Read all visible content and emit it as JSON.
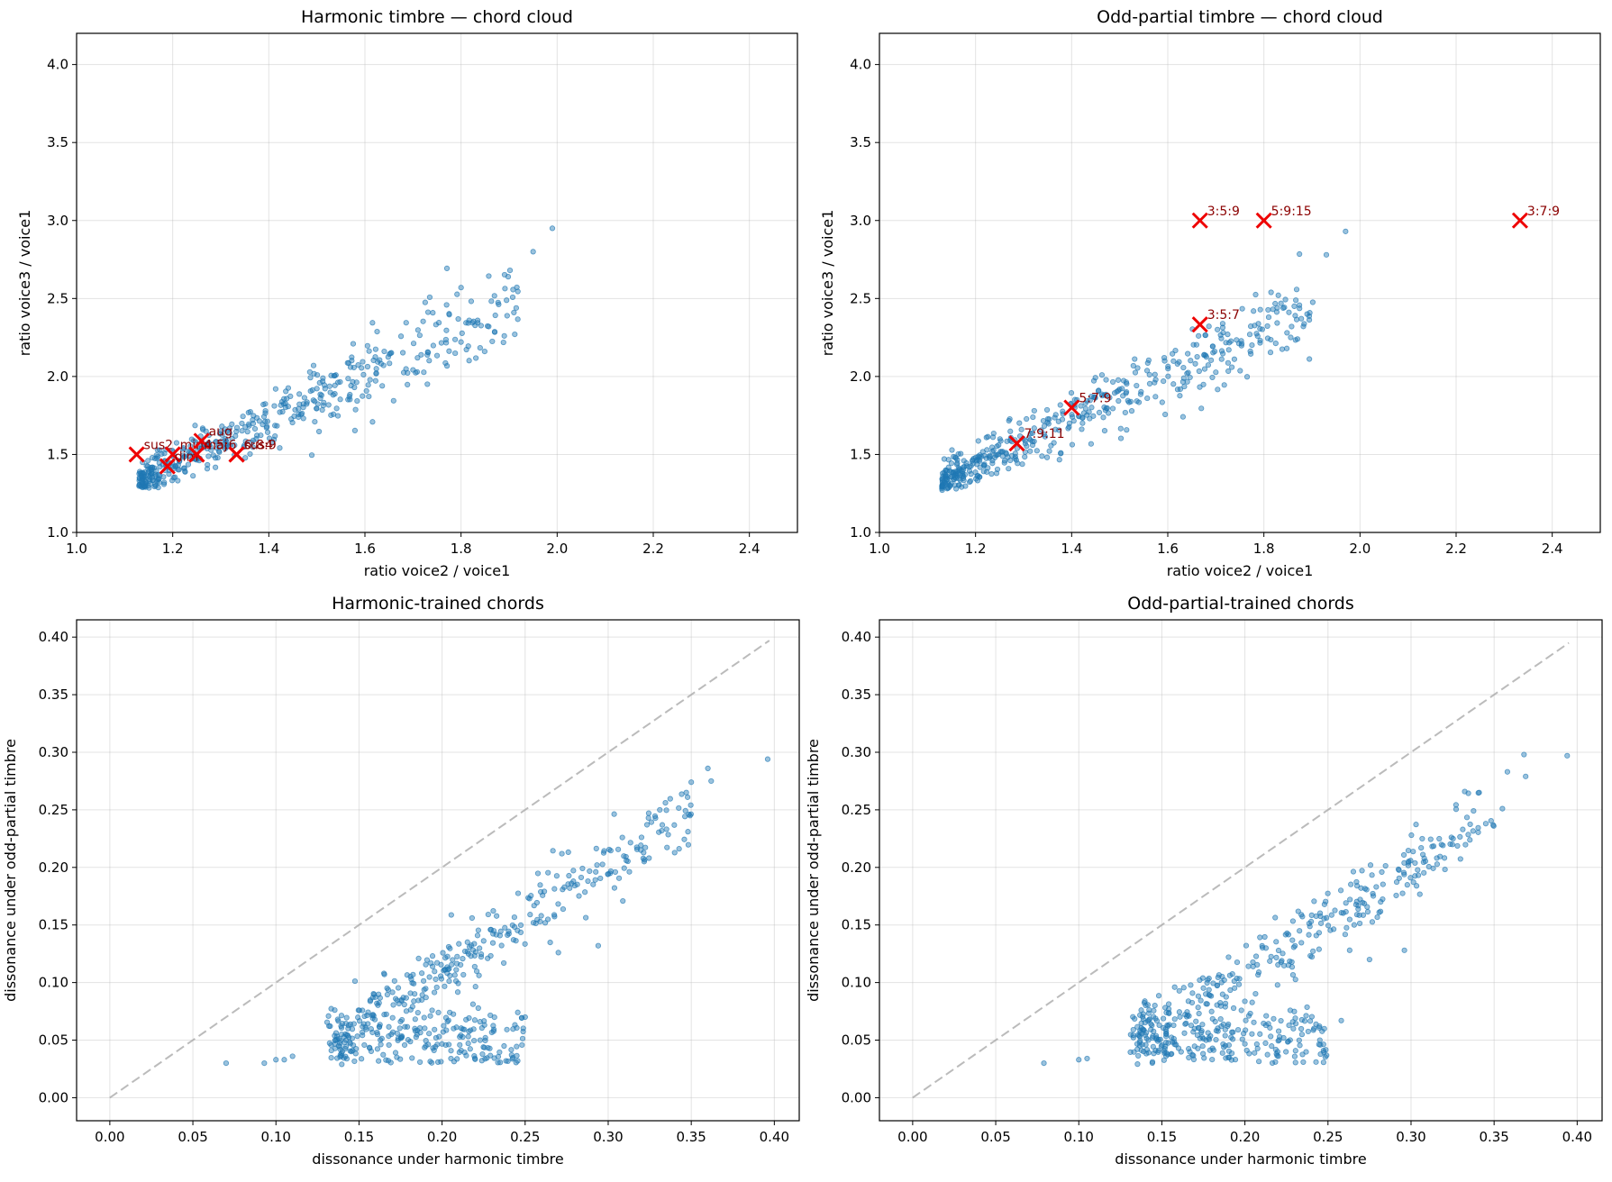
{
  "chart_data": [
    {
      "type": "scatter",
      "title": "Harmonic timbre — chord cloud",
      "xlabel": "ratio voice2 / voice1",
      "ylabel": "ratio voice3 / voice1",
      "xlim": [
        1.0,
        2.5
      ],
      "ylim": [
        1.0,
        4.2
      ],
      "xticks": [
        "1.0",
        "1.2",
        "1.4",
        "1.6",
        "1.8",
        "2.0",
        "2.2",
        "2.4"
      ],
      "yticks": [
        "1.0",
        "1.5",
        "2.0",
        "2.5",
        "3.0",
        "3.5",
        "4.0"
      ],
      "grid": true,
      "cloud": {
        "kind": "ratio",
        "n": 470,
        "x_min": 1.13,
        "x_max": 1.99,
        "seed": 11
      },
      "outliers": [
        [
          1.95,
          2.8
        ],
        [
          1.99,
          2.95
        ],
        [
          1.8,
          2.57
        ],
        [
          1.91,
          2.41
        ],
        [
          1.89,
          2.26
        ]
      ],
      "markers": [
        {
          "label": "sus2",
          "x": 1.125,
          "y": 1.5
        },
        {
          "label": "min",
          "x": 1.2,
          "y": 1.5
        },
        {
          "label": "dim",
          "x": 1.189,
          "y": 1.424
        },
        {
          "label": "aug",
          "x": 1.26,
          "y": 1.587
        },
        {
          "label": "maj",
          "x": 1.25,
          "y": 1.5
        },
        {
          "label": "4:5:6",
          "x": 1.25,
          "y": 1.5
        },
        {
          "label": "sus4",
          "x": 1.333,
          "y": 1.5
        },
        {
          "label": "6:8:9",
          "x": 1.333,
          "y": 1.5
        }
      ]
    },
    {
      "type": "scatter",
      "title": "Odd-partial timbre — chord cloud",
      "xlabel": "ratio voice2 / voice1",
      "ylabel": "ratio voice3 / voice1",
      "xlim": [
        1.0,
        2.5
      ],
      "ylim": [
        1.0,
        4.2
      ],
      "xticks": [
        "1.0",
        "1.2",
        "1.4",
        "1.6",
        "1.8",
        "2.0",
        "2.2",
        "2.4"
      ],
      "yticks": [
        "1.0",
        "1.5",
        "2.0",
        "2.5",
        "3.0",
        "3.5",
        "4.0"
      ],
      "grid": true,
      "cloud": {
        "kind": "ratio",
        "n": 470,
        "x_min": 1.13,
        "x_max": 1.97,
        "seed": 23
      },
      "outliers": [
        [
          1.93,
          2.78
        ],
        [
          1.97,
          2.93
        ],
        [
          1.89,
          2.4
        ],
        [
          1.81,
          2.38
        ],
        [
          1.87,
          2.24
        ]
      ],
      "markers": [
        {
          "label": "3:5:9",
          "x": 1.667,
          "y": 3.0
        },
        {
          "label": "5:9:15",
          "x": 1.8,
          "y": 3.0
        },
        {
          "label": "3:7:9",
          "x": 2.333,
          "y": 3.0
        },
        {
          "label": "3:5:7",
          "x": 1.667,
          "y": 2.333
        },
        {
          "label": "5:7:9",
          "x": 1.4,
          "y": 1.8
        },
        {
          "label": "7:9:11",
          "x": 1.286,
          "y": 1.571
        }
      ]
    },
    {
      "type": "scatter",
      "title": "Harmonic-trained chords",
      "xlabel": "dissonance under harmonic timbre",
      "ylabel": "dissonance under odd-partial timbre",
      "xlim": [
        -0.02,
        0.415
      ],
      "ylim": [
        -0.02,
        0.415
      ],
      "xticks": [
        "0.00",
        "0.05",
        "0.10",
        "0.15",
        "0.20",
        "0.25",
        "0.30",
        "0.35",
        "0.40"
      ],
      "yticks": [
        "0.00",
        "0.05",
        "0.10",
        "0.15",
        "0.20",
        "0.25",
        "0.30",
        "0.35",
        "0.40"
      ],
      "grid": true,
      "diagonal": [
        0,
        0.397
      ],
      "cloud": {
        "kind": "diss",
        "n": 520,
        "seed": 37
      },
      "outliers": [
        [
          0.07,
          0.03
        ],
        [
          0.093,
          0.03
        ],
        [
          0.1,
          0.033
        ],
        [
          0.105,
          0.033
        ],
        [
          0.11,
          0.036
        ],
        [
          0.396,
          0.294
        ],
        [
          0.36,
          0.286
        ],
        [
          0.362,
          0.275
        ],
        [
          0.35,
          0.274
        ],
        [
          0.347,
          0.265
        ],
        [
          0.294,
          0.132
        ],
        [
          0.27,
          0.126
        ],
        [
          0.25,
          0.07
        ]
      ]
    },
    {
      "type": "scatter",
      "title": "Odd-partial-trained chords",
      "xlabel": "dissonance under harmonic timbre",
      "ylabel": "dissonance under odd-partial timbre",
      "xlim": [
        -0.02,
        0.415
      ],
      "ylim": [
        -0.02,
        0.415
      ],
      "xticks": [
        "0.00",
        "0.05",
        "0.10",
        "0.15",
        "0.20",
        "0.25",
        "0.30",
        "0.35",
        "0.40"
      ],
      "yticks": [
        "0.00",
        "0.05",
        "0.10",
        "0.15",
        "0.20",
        "0.25",
        "0.30",
        "0.35",
        "0.40"
      ],
      "grid": true,
      "diagonal": [
        0,
        0.395
      ],
      "cloud": {
        "kind": "diss",
        "n": 520,
        "seed": 53
      },
      "outliers": [
        [
          0.079,
          0.03
        ],
        [
          0.1,
          0.033
        ],
        [
          0.105,
          0.034
        ],
        [
          0.394,
          0.297
        ],
        [
          0.368,
          0.298
        ],
        [
          0.369,
          0.279
        ],
        [
          0.358,
          0.283
        ],
        [
          0.355,
          0.251
        ],
        [
          0.341,
          0.265
        ],
        [
          0.345,
          0.238
        ],
        [
          0.296,
          0.128
        ],
        [
          0.275,
          0.12
        ],
        [
          0.258,
          0.067
        ]
      ]
    }
  ]
}
